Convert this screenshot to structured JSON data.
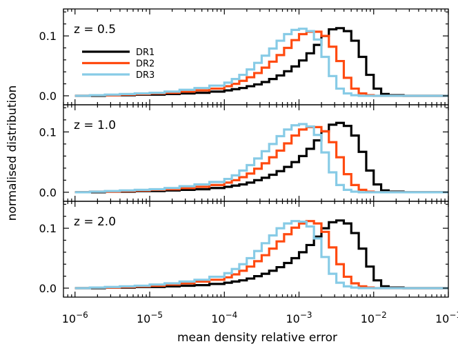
{
  "chart_data": {
    "type": "line",
    "subtype": "step-histogram",
    "xlabel": "mean density relative error",
    "ylabel": "normalised distribution",
    "xscale": "log",
    "xlim": [
      7e-07,
      0.1
    ],
    "ylim": [
      -0.015,
      0.145
    ],
    "x_ticks": [
      {
        "value": 1e-06,
        "base": "10",
        "exp": "−6"
      },
      {
        "value": 1e-05,
        "base": "10",
        "exp": "−5"
      },
      {
        "value": 0.0001,
        "base": "10",
        "exp": "−4"
      },
      {
        "value": 0.001,
        "base": "10",
        "exp": "−3"
      },
      {
        "value": 0.01,
        "base": "10",
        "exp": "−2"
      },
      {
        "value": 0.1,
        "base": "10",
        "exp": "−1"
      }
    ],
    "y_ticks": [
      {
        "value": 0.0,
        "label": "0.0"
      },
      {
        "value": 0.1,
        "label": "0.1"
      }
    ],
    "grid": false,
    "legend": {
      "placement": "upper-left of top panel",
      "entries": [
        {
          "name": "DR1",
          "color": "#000000"
        },
        {
          "name": "DR2",
          "color": "#ff4a10"
        },
        {
          "name": "DR3",
          "color": "#87cbe6"
        }
      ]
    },
    "bin_edges_log10": [
      -6.0,
      -5.8,
      -5.6,
      -5.4,
      -5.2,
      -5.0,
      -4.8,
      -4.6,
      -4.4,
      -4.2,
      -4.0,
      -3.9,
      -3.8,
      -3.7,
      -3.6,
      -3.5,
      -3.4,
      -3.3,
      -3.2,
      -3.1,
      -3.0,
      -2.9,
      -2.8,
      -2.7,
      -2.6,
      -2.5,
      -2.4,
      -2.3,
      -2.2,
      -2.1,
      -2.0,
      -1.9,
      -1.8,
      -1.6,
      -1.4,
      -1.2,
      -1.0
    ],
    "panels": [
      {
        "label": "z = 0.5",
        "series": [
          {
            "name": "DR1",
            "color": "#000000",
            "values": [
              0.0,
              0.0,
              0.001,
              0.001,
              0.002,
              0.002,
              0.003,
              0.004,
              0.005,
              0.007,
              0.009,
              0.011,
              0.013,
              0.016,
              0.019,
              0.023,
              0.028,
              0.034,
              0.041,
              0.049,
              0.059,
              0.071,
              0.085,
              0.1,
              0.111,
              0.113,
              0.108,
              0.092,
              0.065,
              0.035,
              0.012,
              0.003,
              0.001,
              0.0,
              0.0,
              0.0
            ]
          },
          {
            "name": "DR2",
            "color": "#ff4a10",
            "values": [
              0.0,
              0.001,
              0.001,
              0.002,
              0.003,
              0.004,
              0.005,
              0.007,
              0.009,
              0.012,
              0.016,
              0.02,
              0.025,
              0.031,
              0.038,
              0.047,
              0.057,
              0.068,
              0.08,
              0.093,
              0.103,
              0.107,
              0.107,
              0.1,
              0.082,
              0.058,
              0.03,
              0.012,
              0.004,
              0.001,
              0.0,
              0.0,
              0.0,
              0.0,
              0.0,
              0.0
            ]
          },
          {
            "name": "DR3",
            "color": "#87cbe6",
            "values": [
              0.0,
              0.001,
              0.002,
              0.003,
              0.004,
              0.005,
              0.007,
              0.01,
              0.013,
              0.017,
              0.022,
              0.028,
              0.035,
              0.044,
              0.055,
              0.067,
              0.079,
              0.092,
              0.103,
              0.11,
              0.112,
              0.108,
              0.094,
              0.065,
              0.033,
              0.012,
              0.004,
              0.001,
              0.0,
              0.0,
              0.0,
              0.0,
              0.0,
              0.0,
              0.0,
              0.0
            ]
          }
        ]
      },
      {
        "label": "z = 1.0",
        "series": [
          {
            "name": "DR1",
            "color": "#000000",
            "values": [
              0.0,
              0.0,
              0.001,
              0.001,
              0.002,
              0.002,
              0.003,
              0.004,
              0.005,
              0.007,
              0.009,
              0.011,
              0.013,
              0.016,
              0.02,
              0.024,
              0.029,
              0.035,
              0.042,
              0.05,
              0.06,
              0.072,
              0.086,
              0.101,
              0.112,
              0.115,
              0.11,
              0.094,
              0.067,
              0.036,
              0.013,
              0.003,
              0.001,
              0.0,
              0.0,
              0.0
            ]
          },
          {
            "name": "DR2",
            "color": "#ff4a10",
            "values": [
              0.0,
              0.001,
              0.001,
              0.002,
              0.003,
              0.004,
              0.005,
              0.007,
              0.009,
              0.012,
              0.016,
              0.02,
              0.025,
              0.031,
              0.039,
              0.048,
              0.058,
              0.069,
              0.081,
              0.094,
              0.104,
              0.108,
              0.108,
              0.101,
              0.083,
              0.058,
              0.03,
              0.012,
              0.004,
              0.001,
              0.0,
              0.0,
              0.0,
              0.0,
              0.0,
              0.0
            ]
          },
          {
            "name": "DR3",
            "color": "#87cbe6",
            "values": [
              0.0,
              0.001,
              0.002,
              0.003,
              0.004,
              0.005,
              0.007,
              0.01,
              0.013,
              0.017,
              0.022,
              0.028,
              0.036,
              0.045,
              0.056,
              0.068,
              0.08,
              0.093,
              0.104,
              0.111,
              0.113,
              0.109,
              0.095,
              0.066,
              0.033,
              0.012,
              0.004,
              0.001,
              0.0,
              0.0,
              0.0,
              0.0,
              0.0,
              0.0,
              0.0,
              0.0
            ]
          }
        ]
      },
      {
        "label": "z = 2.0",
        "series": [
          {
            "name": "DR1",
            "color": "#000000",
            "values": [
              0.0,
              0.0,
              0.001,
              0.001,
              0.002,
              0.002,
              0.003,
              0.004,
              0.005,
              0.007,
              0.009,
              0.011,
              0.013,
              0.016,
              0.02,
              0.024,
              0.029,
              0.035,
              0.042,
              0.05,
              0.06,
              0.072,
              0.086,
              0.1,
              0.11,
              0.113,
              0.108,
              0.092,
              0.066,
              0.036,
              0.013,
              0.003,
              0.001,
              0.0,
              0.0,
              0.0
            ]
          },
          {
            "name": "DR2",
            "color": "#ff4a10",
            "values": [
              0.0,
              0.001,
              0.001,
              0.002,
              0.003,
              0.004,
              0.006,
              0.008,
              0.011,
              0.014,
              0.018,
              0.023,
              0.029,
              0.036,
              0.045,
              0.055,
              0.066,
              0.078,
              0.09,
              0.101,
              0.108,
              0.112,
              0.108,
              0.094,
              0.068,
              0.04,
              0.019,
              0.008,
              0.003,
              0.001,
              0.0,
              0.0,
              0.0,
              0.0,
              0.0,
              0.0
            ]
          },
          {
            "name": "DR3",
            "color": "#87cbe6",
            "values": [
              0.0,
              0.001,
              0.002,
              0.003,
              0.004,
              0.006,
              0.008,
              0.011,
              0.014,
              0.019,
              0.025,
              0.032,
              0.04,
              0.05,
              0.062,
              0.075,
              0.088,
              0.1,
              0.108,
              0.112,
              0.111,
              0.103,
              0.083,
              0.052,
              0.024,
              0.009,
              0.003,
              0.001,
              0.0,
              0.0,
              0.0,
              0.0,
              0.0,
              0.0,
              0.0,
              0.0
            ]
          }
        ]
      }
    ]
  }
}
